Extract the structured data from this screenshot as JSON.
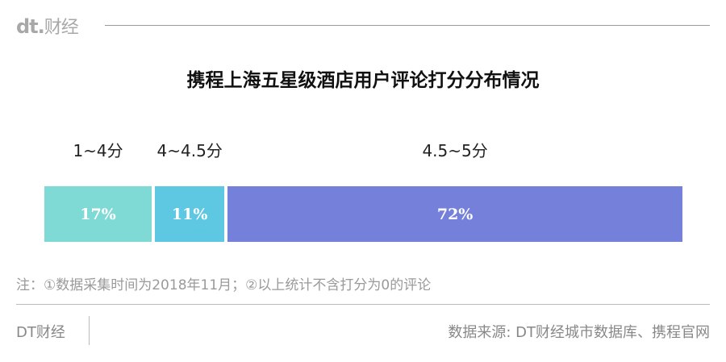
{
  "header": {
    "logo_mark": "dt.",
    "logo_text": "财经"
  },
  "chart_data": {
    "type": "bar",
    "orientation": "stacked-horizontal-100",
    "title": "携程上海五星级酒店用户评论打分分布情况",
    "categories": [
      "1~4分",
      "4~4.5分",
      "4.5~5分"
    ],
    "values": [
      17,
      11,
      72
    ],
    "data_labels": [
      "17%",
      "11%",
      "72%"
    ],
    "colors": [
      "#7fdad6",
      "#5ec8e3",
      "#7480da"
    ]
  },
  "note": "注：①数据采集时间为2018年11月；②以上统计不含打分为0的评论",
  "footer": {
    "brand": "DT财经",
    "source": "数据来源: DT财经城市数据库、携程官网"
  }
}
